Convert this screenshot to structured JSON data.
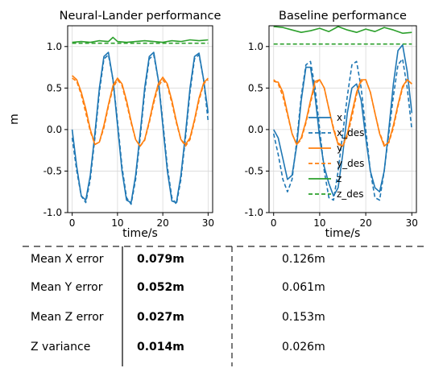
{
  "chart_data": [
    {
      "type": "line",
      "title": "Neural-Lander performance",
      "xlabel": "time/s",
      "ylabel": "m",
      "xlim": [
        -1,
        31
      ],
      "ylim": [
        -1.0,
        1.25
      ],
      "xticks": [
        "0",
        "10",
        "20",
        "30"
      ],
      "yticks": [
        "1.0",
        "0.5",
        "0.0",
        "-0.5",
        "-1.0"
      ],
      "grid": true,
      "series": [
        {
          "name": "x",
          "color": "#1f77b4",
          "dash": false,
          "x": [
            0,
            1,
            2,
            3,
            4,
            5,
            6,
            7,
            8,
            9,
            10,
            11,
            12,
            13,
            14,
            15,
            16,
            17,
            18,
            19,
            20,
            21,
            22,
            23,
            24,
            25,
            26,
            27,
            28,
            29,
            30
          ],
          "y": [
            0.0,
            -0.45,
            -0.8,
            -0.85,
            -0.55,
            -0.05,
            0.5,
            0.88,
            0.93,
            0.6,
            0.05,
            -0.5,
            -0.85,
            -0.88,
            -0.55,
            -0.05,
            0.5,
            0.88,
            0.93,
            0.6,
            0.05,
            -0.5,
            -0.86,
            -0.88,
            -0.55,
            -0.05,
            0.5,
            0.88,
            0.92,
            0.6,
            0.2
          ]
        },
        {
          "name": "x_des",
          "color": "#1f77b4",
          "dash": true,
          "x": [
            0,
            1,
            2,
            3,
            4,
            5,
            6,
            7,
            8,
            9,
            10,
            11,
            12,
            13,
            14,
            15,
            16,
            17,
            18,
            19,
            20,
            21,
            22,
            23,
            24,
            25,
            26,
            27,
            28,
            29,
            30
          ],
          "y": [
            -0.1,
            -0.5,
            -0.8,
            -0.88,
            -0.6,
            -0.1,
            0.45,
            0.85,
            0.9,
            0.6,
            0.1,
            -0.45,
            -0.82,
            -0.9,
            -0.6,
            -0.1,
            0.45,
            0.85,
            0.9,
            0.6,
            0.1,
            -0.45,
            -0.82,
            -0.9,
            -0.6,
            -0.1,
            0.45,
            0.85,
            0.9,
            0.6,
            0.1
          ]
        },
        {
          "name": "y",
          "color": "#ff7f0e",
          "dash": false,
          "x": [
            0,
            1,
            2,
            3,
            4,
            5,
            6,
            7,
            8,
            9,
            10,
            11,
            12,
            13,
            14,
            15,
            16,
            17,
            18,
            19,
            20,
            21,
            22,
            23,
            24,
            25,
            26,
            27,
            28,
            29,
            30
          ],
          "y": [
            0.65,
            0.6,
            0.45,
            0.25,
            0.0,
            -0.18,
            -0.15,
            0.05,
            0.3,
            0.53,
            0.62,
            0.55,
            0.35,
            0.1,
            -0.12,
            -0.2,
            -0.12,
            0.1,
            0.35,
            0.55,
            0.63,
            0.55,
            0.35,
            0.1,
            -0.12,
            -0.18,
            -0.1,
            0.12,
            0.38,
            0.56,
            0.62
          ]
        },
        {
          "name": "y_des",
          "color": "#ff7f0e",
          "dash": true,
          "x": [
            0,
            1,
            2,
            3,
            4,
            5,
            6,
            7,
            8,
            9,
            10,
            11,
            12,
            13,
            14,
            15,
            16,
            17,
            18,
            19,
            20,
            21,
            22,
            23,
            24,
            25,
            26,
            27,
            28,
            29,
            30
          ],
          "y": [
            0.62,
            0.58,
            0.42,
            0.2,
            -0.02,
            -0.18,
            -0.15,
            0.02,
            0.28,
            0.5,
            0.6,
            0.53,
            0.32,
            0.08,
            -0.12,
            -0.2,
            -0.13,
            0.08,
            0.32,
            0.52,
            0.6,
            0.53,
            0.32,
            0.08,
            -0.12,
            -0.2,
            -0.12,
            0.1,
            0.35,
            0.55,
            0.6
          ]
        },
        {
          "name": "z",
          "color": "#2ca02c",
          "dash": false,
          "x": [
            0,
            2,
            4,
            6,
            8,
            9,
            10,
            12,
            14,
            16,
            18,
            20,
            22,
            24,
            26,
            28,
            30
          ],
          "y": [
            1.05,
            1.06,
            1.05,
            1.07,
            1.06,
            1.11,
            1.06,
            1.05,
            1.06,
            1.07,
            1.06,
            1.05,
            1.07,
            1.06,
            1.08,
            1.07,
            1.08
          ]
        },
        {
          "name": "z_des",
          "color": "#2ca02c",
          "dash": true,
          "x": [
            0,
            30
          ],
          "y": [
            1.04,
            1.04
          ]
        }
      ]
    },
    {
      "type": "line",
      "title": "Baseline performance",
      "xlabel": "time/s",
      "ylabel": "",
      "xlim": [
        -1,
        31
      ],
      "ylim": [
        -1.0,
        1.25
      ],
      "xticks": [
        "0",
        "10",
        "20",
        "30"
      ],
      "yticks": [
        "1.0",
        "0.5",
        "0.0",
        "-0.5",
        "-1.0"
      ],
      "grid": true,
      "legend": "center",
      "series": [
        {
          "name": "x",
          "color": "#1f77b4",
          "dash": false,
          "x": [
            0,
            1,
            2,
            3,
            4,
            5,
            6,
            7,
            8,
            9,
            10,
            11,
            12,
            13,
            14,
            15,
            16,
            17,
            18,
            19,
            20,
            21,
            22,
            23,
            24,
            25,
            26,
            27,
            28,
            29,
            30
          ],
          "y": [
            0.0,
            -0.1,
            -0.35,
            -0.6,
            -0.55,
            -0.2,
            0.35,
            0.75,
            0.75,
            0.4,
            -0.1,
            -0.45,
            -0.65,
            -0.8,
            -0.7,
            -0.3,
            0.2,
            0.5,
            0.55,
            0.35,
            -0.1,
            -0.5,
            -0.7,
            -0.75,
            -0.5,
            0.0,
            0.55,
            0.95,
            1.02,
            0.7,
            0.2
          ]
        },
        {
          "name": "x_des",
          "color": "#1f77b4",
          "dash": true,
          "x": [
            0,
            1,
            2,
            3,
            4,
            5,
            6,
            7,
            8,
            9,
            10,
            11,
            12,
            13,
            14,
            15,
            16,
            17,
            18,
            19,
            20,
            21,
            22,
            23,
            24,
            25,
            26,
            27,
            28,
            29,
            30
          ],
          "y": [
            -0.05,
            -0.3,
            -0.6,
            -0.75,
            -0.6,
            -0.15,
            0.4,
            0.78,
            0.82,
            0.5,
            0.0,
            -0.5,
            -0.82,
            -0.85,
            -0.5,
            -0.05,
            0.4,
            0.78,
            0.82,
            0.5,
            0.0,
            -0.5,
            -0.82,
            -0.85,
            -0.5,
            -0.05,
            0.4,
            0.78,
            0.85,
            0.5,
            0.0
          ]
        },
        {
          "name": "y",
          "color": "#ff7f0e",
          "dash": false,
          "x": [
            0,
            1,
            2,
            3,
            4,
            5,
            6,
            7,
            8,
            9,
            10,
            11,
            12,
            13,
            14,
            15,
            16,
            17,
            18,
            19,
            20,
            21,
            22,
            23,
            24,
            25,
            26,
            27,
            28,
            29,
            30
          ],
          "y": [
            0.58,
            0.57,
            0.45,
            0.2,
            -0.05,
            -0.18,
            -0.1,
            0.1,
            0.35,
            0.58,
            0.6,
            0.5,
            0.25,
            0.0,
            -0.18,
            -0.2,
            -0.05,
            0.2,
            0.45,
            0.6,
            0.6,
            0.45,
            0.2,
            -0.05,
            -0.2,
            -0.15,
            0.05,
            0.3,
            0.52,
            0.6,
            0.55
          ]
        },
        {
          "name": "y_des",
          "color": "#ff7f0e",
          "dash": true,
          "x": [
            0,
            1,
            2,
            3,
            4,
            5,
            6,
            7,
            8,
            9,
            10,
            11,
            12,
            13,
            14,
            15,
            16,
            17,
            18,
            19,
            20,
            21,
            22,
            23,
            24,
            25,
            26,
            27,
            28,
            29,
            30
          ],
          "y": [
            0.6,
            0.55,
            0.4,
            0.18,
            -0.05,
            -0.18,
            -0.12,
            0.08,
            0.32,
            0.55,
            0.6,
            0.5,
            0.25,
            0.02,
            -0.16,
            -0.2,
            -0.08,
            0.15,
            0.42,
            0.58,
            0.6,
            0.45,
            0.2,
            -0.04,
            -0.18,
            -0.16,
            0.02,
            0.28,
            0.5,
            0.6,
            0.55
          ]
        },
        {
          "name": "z",
          "color": "#2ca02c",
          "dash": false,
          "x": [
            0,
            2,
            4,
            6,
            8,
            10,
            12,
            14,
            16,
            18,
            20,
            22,
            24,
            26,
            28,
            30
          ],
          "y": [
            1.24,
            1.23,
            1.2,
            1.17,
            1.19,
            1.22,
            1.18,
            1.24,
            1.2,
            1.17,
            1.21,
            1.18,
            1.23,
            1.2,
            1.16,
            1.17
          ]
        },
        {
          "name": "z_des",
          "color": "#2ca02c",
          "dash": true,
          "x": [
            0,
            30
          ],
          "y": [
            1.03,
            1.03
          ]
        }
      ]
    }
  ],
  "metrics": {
    "rows": [
      {
        "label": "Mean X error",
        "neural": "0.079m",
        "baseline": "0.126m"
      },
      {
        "label": "Mean Y error",
        "neural": "0.052m",
        "baseline": "0.061m"
      },
      {
        "label": "Mean Z error",
        "neural": "0.027m",
        "baseline": "0.153m"
      },
      {
        "label": "Z variance",
        "neural": "0.014m",
        "baseline": "0.026m"
      }
    ]
  }
}
